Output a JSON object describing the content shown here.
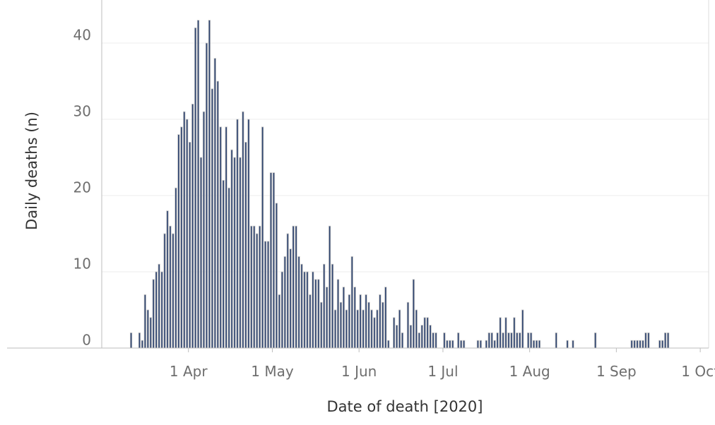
{
  "chart_data": {
    "type": "bar",
    "title": "",
    "xlabel": "Date of death [2020]",
    "ylabel": "Daily deaths (n)",
    "ylim": [
      0,
      45
    ],
    "grid": true,
    "legend": "none",
    "colors": {
      "bar_fill": "#2e4470",
      "bar_edge": "#c4c4c4",
      "grid": "#ececec",
      "axis": "#bdbdbd"
    },
    "x_start": "2020-03-01",
    "x_end": "2020-10-04",
    "x_ticks": [
      {
        "label": "1 Apr",
        "date": "2020-04-01"
      },
      {
        "label": "1 May",
        "date": "2020-05-01"
      },
      {
        "label": "1 Jun",
        "date": "2020-06-01"
      },
      {
        "label": "1 Jul",
        "date": "2020-07-01"
      },
      {
        "label": "1 Aug",
        "date": "2020-08-01"
      },
      {
        "label": "1 Sep",
        "date": "2020-09-01"
      },
      {
        "label": "1 Oct",
        "date": "2020-10-01"
      }
    ],
    "y_ticks": [
      0,
      10,
      20,
      30,
      40
    ],
    "series": [
      {
        "start_date": "2020-03-11",
        "values": [
          2,
          0,
          0,
          2,
          1,
          7,
          5,
          4,
          9,
          10,
          11,
          10,
          15,
          18,
          16,
          15,
          21,
          28,
          29,
          31,
          30,
          27,
          32,
          42,
          43,
          25,
          31,
          40,
          43,
          34,
          38,
          35,
          29,
          22,
          29,
          21,
          26,
          25,
          30,
          25,
          31,
          27,
          30,
          16,
          16,
          15,
          16,
          29,
          14,
          14,
          23,
          23,
          19,
          7,
          10,
          12,
          15,
          13,
          16,
          16,
          12,
          11,
          10,
          10,
          7,
          10,
          9,
          9,
          6,
          11,
          8,
          16,
          11,
          5,
          9,
          6,
          8,
          5,
          7,
          12,
          8,
          5,
          7,
          5,
          7,
          6,
          5,
          4,
          5,
          7,
          6,
          8,
          1,
          0,
          4,
          3,
          5,
          2,
          0,
          6,
          3,
          9,
          5,
          2,
          3,
          4,
          4,
          3,
          2,
          2,
          0,
          0,
          2,
          1,
          1,
          1,
          0,
          2,
          1,
          1,
          0,
          0,
          0,
          0,
          1,
          1,
          0,
          1,
          2,
          2,
          1,
          2,
          4,
          2,
          4,
          2,
          2,
          4,
          2,
          2,
          5,
          0,
          2,
          2,
          1,
          1,
          1,
          0,
          0,
          0,
          0,
          0,
          2,
          0,
          0,
          0,
          1,
          0,
          1,
          0,
          0,
          0,
          0,
          0,
          0,
          0,
          2,
          0,
          0,
          0,
          0,
          0,
          0,
          0,
          0,
          0,
          0,
          0,
          0,
          1,
          1,
          1,
          1,
          1,
          2,
          2,
          0,
          0,
          0,
          1,
          1,
          2,
          2
        ]
      }
    ]
  }
}
